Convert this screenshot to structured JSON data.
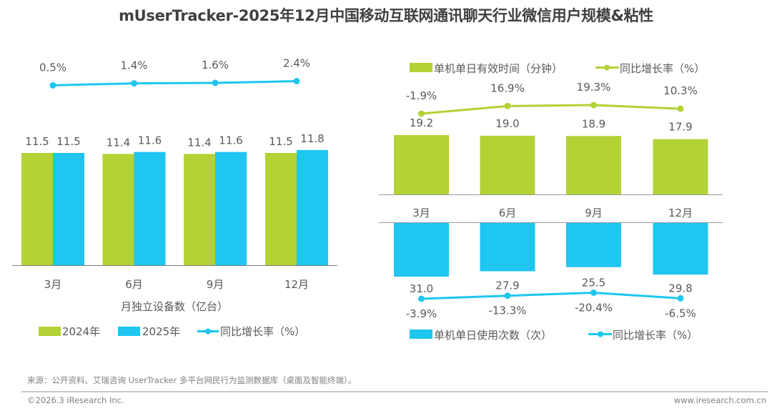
{
  "title": "mUserTracker-2025年12月中国移动互联网通讯聊天行业微信用户规模&粘性",
  "colors": {
    "green": "#B2D235",
    "blue": "#1EC6F0",
    "axis": "#7F7F7F",
    "text": "#595959"
  },
  "footer": {
    "source": "来源：公开资料、艾瑞咨询 UserTracker 多平台网民行为监测数据库（桌面及智能终端）。",
    "copyright": "©2026.3 iResearch Inc.",
    "website": "www.iresearch.com.cn"
  },
  "chart_data": [
    {
      "id": "monthly-devices",
      "type": "bar",
      "xlabel": "月独立设备数（亿台）",
      "categories": [
        "3月",
        "6月",
        "9月",
        "12月"
      ],
      "series": [
        {
          "name": "2024年",
          "values": [
            11.5,
            11.4,
            11.4,
            11.5
          ],
          "color": "#B2D235"
        },
        {
          "name": "2025年",
          "values": [
            11.5,
            11.6,
            11.6,
            11.8
          ],
          "color": "#1EC6F0"
        }
      ],
      "line_series": {
        "name": "同比增长率（%）",
        "values": [
          0.5,
          1.4,
          1.6,
          2.4
        ],
        "labels": [
          "0.5%",
          "1.4%",
          "1.6%",
          "2.4%"
        ],
        "color": "#1EC6F0"
      },
      "bar_labels": [
        [
          "11.5",
          "11.4",
          "11.4",
          "11.5"
        ],
        [
          "11.5",
          "11.6",
          "11.6",
          "11.8"
        ]
      ],
      "legend": [
        "2024年",
        "2025年",
        "同比增长率（%）"
      ],
      "legend_position": "bottom"
    },
    {
      "id": "daily-time",
      "type": "bar",
      "categories": [
        "3月",
        "6月",
        "9月",
        "12月"
      ],
      "series": [
        {
          "name": "单机单日有效时间（分钟）",
          "values": [
            19.2,
            19.0,
            18.9,
            17.9
          ],
          "color": "#B2D235"
        }
      ],
      "bar_labels": [
        "19.2",
        "19.0",
        "18.9",
        "17.9"
      ],
      "line_series": {
        "name": "同比增长率（%）",
        "values": [
          -1.9,
          16.9,
          19.3,
          10.3
        ],
        "labels": [
          "-1.9%",
          "16.9%",
          "19.3%",
          "10.3%"
        ],
        "color": "#B2D235"
      },
      "legend": [
        "单机单日有效时间（分钟）",
        "同比增长率（%）"
      ],
      "legend_position": "top"
    },
    {
      "id": "daily-usage-count",
      "type": "bar",
      "orientation": "downward",
      "categories": [
        "3月",
        "6月",
        "9月",
        "12月"
      ],
      "series": [
        {
          "name": "单机单日使用次数（次）",
          "values": [
            31.0,
            27.9,
            25.5,
            29.8
          ],
          "color": "#1EC6F0"
        }
      ],
      "bar_labels": [
        "31.0",
        "27.9",
        "25.5",
        "29.8"
      ],
      "line_series": {
        "name": "同比增长率（%）",
        "values": [
          -3.9,
          -13.3,
          -20.4,
          -6.5
        ],
        "labels": [
          "-3.9%",
          "-13.3%",
          "-20.4%",
          "-6.5%"
        ],
        "color": "#1EC6F0"
      },
      "legend": [
        "单机单日使用次数（次）",
        "同比增长率（%）"
      ],
      "legend_position": "bottom"
    }
  ]
}
